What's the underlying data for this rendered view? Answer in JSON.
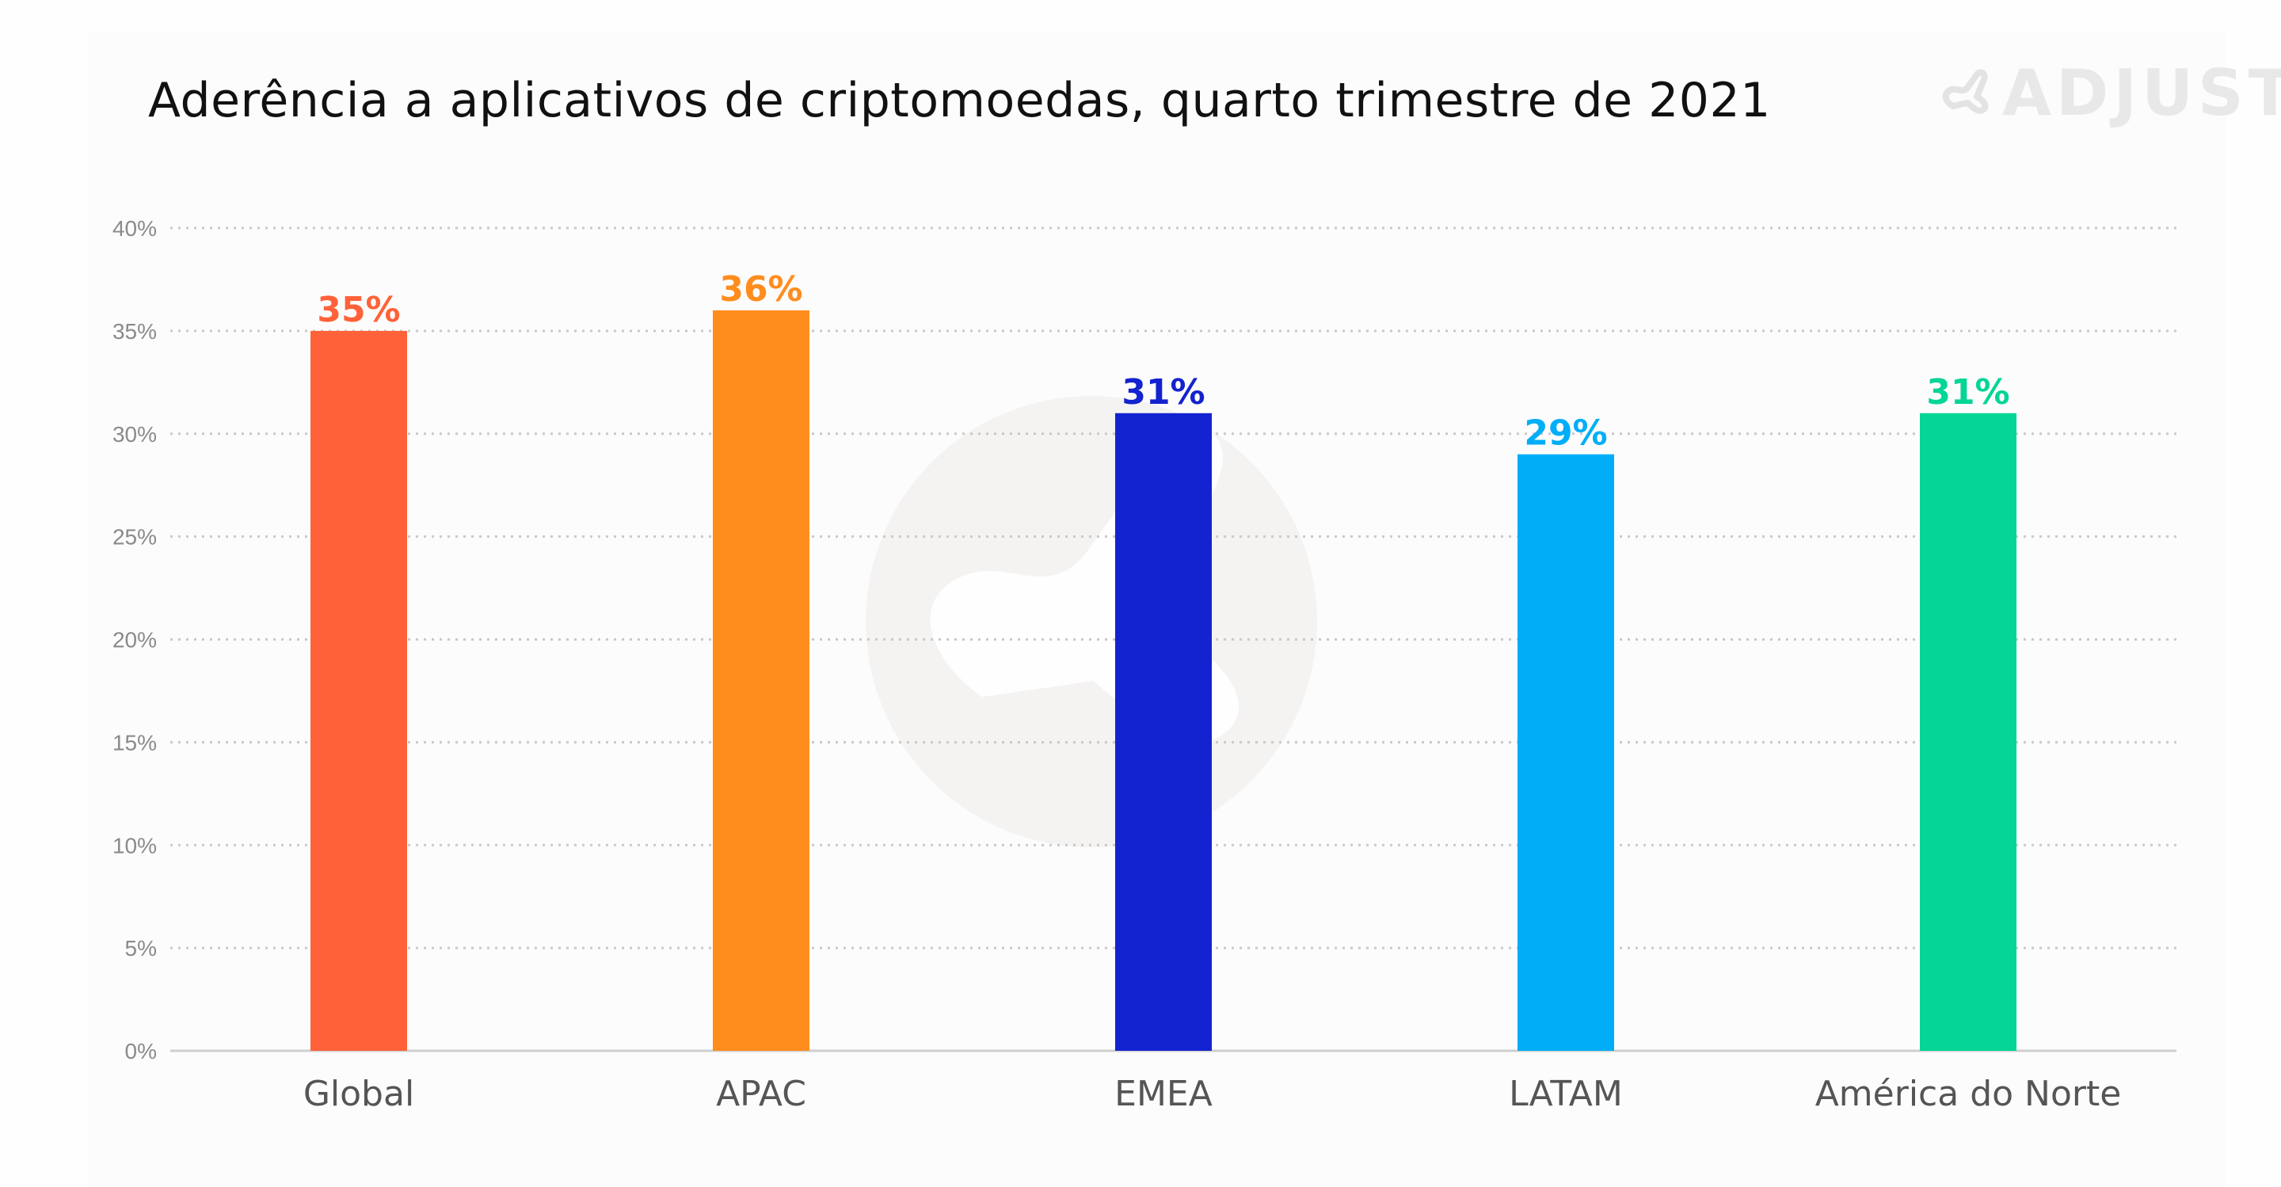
{
  "page": {
    "title": "Aderência a aplicativos de criptomoedas, quarto trimestre de 2021",
    "brand": "ADJUST",
    "brand_icon": "adjust-logo-icon",
    "watermark_icon": "adjust-watermark-icon"
  },
  "chart_data": {
    "type": "bar",
    "title": "Aderência a aplicativos de criptomoedas, quarto trimestre de 2021",
    "xlabel": "",
    "ylabel": "",
    "categories": [
      "Global",
      "APAC",
      "EMEA",
      "LATAM",
      "América do Norte"
    ],
    "values": [
      35,
      36,
      31,
      29,
      31
    ],
    "data_labels": [
      "35%",
      "36%",
      "31%",
      "29%",
      "31%"
    ],
    "colors": [
      "#ff6239",
      "#ff8d1e",
      "#1323cf",
      "#00aef8",
      "#05d596"
    ],
    "ylim": [
      0,
      40
    ],
    "yticks": [
      0,
      5,
      10,
      15,
      20,
      25,
      30,
      35,
      40
    ],
    "ytick_labels": [
      "0%",
      "5%",
      "10%",
      "15%",
      "20%",
      "25%",
      "30%",
      "35%",
      "40%"
    ],
    "grid": true,
    "grid_style": "dotted",
    "legend": "none"
  }
}
